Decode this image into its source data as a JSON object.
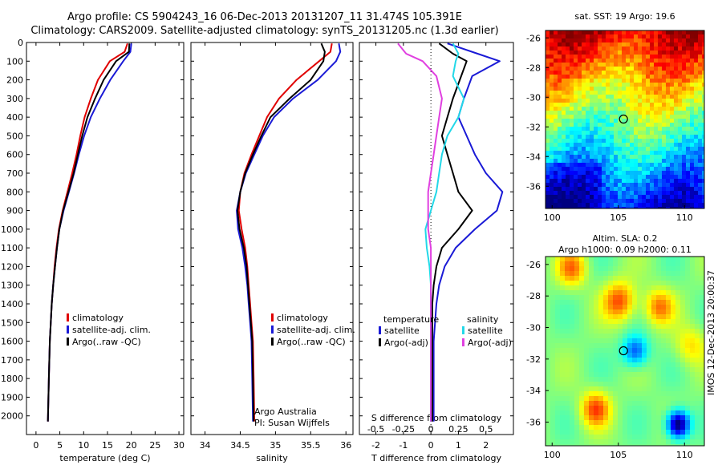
{
  "header": {
    "line1": "Argo profile: CS 5904243_16 06-Dec-2013 20131207_11 31.474S 105.391E",
    "line2": "Climatology: CARS2009. Satellite-adjusted climatology: synTS_20131205.nc (1.3d earlier)"
  },
  "colors": {
    "climatology": "#e00000",
    "satellite": "#1a1ad6",
    "argo": "#000000",
    "sat_salinity": "#22d8e8",
    "argo_salinity": "#e040e0"
  },
  "chart_data": [
    {
      "type": "line",
      "id": "temperature",
      "xlabel": "temperature (deg C)",
      "ylim": [
        2100,
        0
      ],
      "xlim": [
        -2,
        31
      ],
      "xticks": [
        0,
        5,
        10,
        15,
        20,
        25,
        30
      ],
      "yticks": [
        0,
        100,
        200,
        300,
        400,
        500,
        600,
        700,
        800,
        900,
        1000,
        1100,
        1200,
        1300,
        1400,
        1500,
        1600,
        1700,
        1800,
        1900,
        2000
      ],
      "legend": [
        "climatology",
        "satellite-adj. clim.",
        "Argo(..raw -QC)"
      ],
      "series": [
        {
          "name": "climatology",
          "color": "#e00000",
          "x": [
            19.2,
            18.6,
            15.5,
            13.0,
            11.5,
            10.2,
            9.3,
            8.5,
            7.6,
            6.6,
            5.6,
            4.8,
            4.3,
            3.9,
            3.6,
            3.3,
            3.1,
            2.9,
            2.7,
            2.5
          ],
          "y": [
            5,
            50,
            100,
            200,
            300,
            400,
            500,
            600,
            700,
            800,
            900,
            1000,
            1100,
            1200,
            1300,
            1400,
            1500,
            1600,
            1800,
            2030
          ]
        },
        {
          "name": "satellite-adj. clim.",
          "color": "#1a1ad6",
          "x": [
            20.0,
            19.8,
            18.3,
            15.6,
            13.4,
            11.5,
            10.1,
            9.0,
            8.0,
            6.9,
            5.8,
            4.9,
            4.4,
            4.0,
            3.6,
            3.3,
            3.1,
            2.9,
            2.7,
            2.5
          ],
          "y": [
            5,
            50,
            100,
            200,
            300,
            400,
            500,
            600,
            700,
            800,
            900,
            1000,
            1100,
            1200,
            1300,
            1400,
            1500,
            1600,
            1800,
            2030
          ]
        },
        {
          "name": "Argo(..raw -QC)",
          "color": "#000000",
          "x": [
            19.6,
            19.5,
            16.8,
            14.2,
            12.4,
            10.8,
            9.7,
            8.8,
            7.9,
            6.8,
            5.7,
            4.9,
            4.4,
            4.0,
            3.6,
            3.3,
            3.1,
            2.9,
            2.7,
            2.5
          ],
          "y": [
            5,
            50,
            100,
            200,
            300,
            400,
            500,
            600,
            700,
            800,
            900,
            1000,
            1100,
            1200,
            1300,
            1400,
            1500,
            1600,
            1800,
            2030
          ]
        }
      ]
    },
    {
      "type": "line",
      "id": "salinity",
      "xlabel": "salinity",
      "ylim": [
        2100,
        0
      ],
      "xlim": [
        33.8,
        36.1
      ],
      "xticks": [
        34,
        34.5,
        35,
        35.5,
        36
      ],
      "xticklabels": [
        "34",
        "34.5",
        "35",
        "35.5",
        "36"
      ],
      "legend": [
        "climatology",
        "satellite-adj. clim.",
        "Argo(..raw -QC)"
      ],
      "annotation": [
        "Argo Australia",
        "PI: Susan Wijffels"
      ],
      "series": [
        {
          "name": "climatology",
          "color": "#e00000",
          "x": [
            35.8,
            35.78,
            35.62,
            35.3,
            35.05,
            34.88,
            34.77,
            34.66,
            34.56,
            34.5,
            34.48,
            34.52,
            34.57,
            34.6,
            34.62,
            34.64,
            34.66,
            34.68,
            34.69,
            34.7
          ],
          "y": [
            5,
            50,
            100,
            200,
            300,
            400,
            500,
            600,
            700,
            800,
            900,
            1000,
            1100,
            1200,
            1300,
            1400,
            1500,
            1600,
            1800,
            2030
          ]
        },
        {
          "name": "satellite-adj. clim.",
          "color": "#1a1ad6",
          "x": [
            35.9,
            35.92,
            35.86,
            35.6,
            35.25,
            34.98,
            34.82,
            34.7,
            34.58,
            34.5,
            34.45,
            34.47,
            34.53,
            34.57,
            34.6,
            34.62,
            34.64,
            34.66,
            34.67,
            34.68
          ],
          "y": [
            5,
            50,
            100,
            200,
            300,
            400,
            500,
            600,
            700,
            800,
            900,
            1000,
            1100,
            1200,
            1300,
            1400,
            1500,
            1600,
            1800,
            2030
          ]
        },
        {
          "name": "Argo(..raw -QC)",
          "color": "#000000",
          "x": [
            35.65,
            35.7,
            35.68,
            35.5,
            35.2,
            34.93,
            34.8,
            34.68,
            34.57,
            34.5,
            34.46,
            34.49,
            34.55,
            34.59,
            34.61,
            34.63,
            34.65,
            34.67,
            34.68,
            34.69
          ],
          "y": [
            5,
            50,
            100,
            200,
            300,
            400,
            500,
            600,
            700,
            800,
            900,
            1000,
            1100,
            1200,
            1300,
            1400,
            1500,
            1600,
            1800,
            2030
          ]
        }
      ]
    },
    {
      "type": "line",
      "id": "difference",
      "xlabel": "T difference from climatology",
      "xlabel_top": "S difference from climatology",
      "ylim": [
        2100,
        0
      ],
      "xlim": [
        -2.6,
        3.0
      ],
      "xticks": [
        -2,
        -1,
        0,
        1,
        2
      ],
      "xticklabels": [
        "-2",
        "-1",
        "0",
        "1",
        "2"
      ],
      "sticks": [
        -0.5,
        -0.25,
        0,
        0.25,
        0.5
      ],
      "sticklabels": [
        "-0.5",
        "-0.25",
        "0",
        "0.25",
        "0.5"
      ],
      "legend_headers": [
        "temperature",
        "salinity"
      ],
      "legend": [
        "satellite",
        "Argo(-adj)",
        "satellite",
        "Argo(-adj)"
      ],
      "series": [
        {
          "name": "satellite",
          "quantity": "temperature",
          "color": "#1a1ad6",
          "x": [
            0.6,
            1.7,
            2.5,
            1.5,
            1.2,
            1.0,
            1.3,
            1.6,
            2.0,
            2.6,
            2.4,
            1.6,
            0.9,
            0.5,
            0.3,
            0.2,
            0.15,
            0.1,
            0.1,
            0.1
          ],
          "y": [
            5,
            60,
            100,
            180,
            300,
            400,
            500,
            600,
            700,
            800,
            900,
            1000,
            1100,
            1200,
            1300,
            1400,
            1500,
            1600,
            1800,
            2030
          ]
        },
        {
          "name": "Argo(-adj)",
          "quantity": "temperature",
          "color": "#000000",
          "x": [
            0.3,
            0.8,
            1.3,
            1.1,
            0.8,
            0.6,
            0.4,
            0.6,
            0.8,
            1.0,
            1.5,
            1.0,
            0.4,
            0.2,
            0.1,
            0.05,
            0.05,
            0.05,
            0.05,
            0.05
          ],
          "y": [
            5,
            60,
            100,
            180,
            300,
            400,
            500,
            600,
            700,
            800,
            900,
            1000,
            1100,
            1200,
            1300,
            1400,
            1500,
            1600,
            1800,
            2030
          ]
        },
        {
          "name": "satellite",
          "quantity": "salinity",
          "color": "#22d8e8",
          "x": [
            0.8,
            1.0,
            0.9,
            0.8,
            1.2,
            1.0,
            0.6,
            0.4,
            0.3,
            0.2,
            0.0,
            -0.2,
            -0.15,
            -0.05,
            0.0,
            0.0,
            0.0,
            0.0,
            0.0,
            0.0
          ],
          "y": [
            5,
            60,
            100,
            180,
            300,
            400,
            500,
            600,
            700,
            800,
            900,
            1000,
            1100,
            1200,
            1300,
            1400,
            1500,
            1600,
            1800,
            2030
          ]
        },
        {
          "name": "Argo(-adj)",
          "quantity": "salinity",
          "color": "#e040e0",
          "x": [
            -1.2,
            -0.9,
            -0.3,
            0.2,
            0.4,
            0.3,
            0.2,
            0.1,
            0.0,
            -0.1,
            -0.1,
            -0.1,
            0.0,
            0.0,
            0.0,
            0.0,
            0.0,
            0.0,
            0.0,
            0.0
          ],
          "y": [
            5,
            60,
            100,
            180,
            300,
            400,
            500,
            600,
            700,
            800,
            900,
            1000,
            1100,
            1200,
            1300,
            1400,
            1500,
            1600,
            1800,
            2030
          ]
        }
      ]
    },
    {
      "type": "heatmap",
      "id": "sst_map",
      "title": "sat. SST: 19 Argo: 19.6",
      "xlim": [
        99.5,
        111.5
      ],
      "ylim": [
        -37.5,
        -25.5
      ],
      "xticks": [
        100,
        105,
        110
      ],
      "yticks": [
        -26,
        -28,
        -30,
        -32,
        -34,
        -36
      ],
      "marker": {
        "lon": 105.391,
        "lat": -31.474
      }
    },
    {
      "type": "heatmap",
      "id": "sla_map",
      "title_line1": "Altim. SLA: 0.2",
      "title_line2": "Argo h1000: 0.09 h2000: 0.11",
      "xlim": [
        99.5,
        111.5
      ],
      "ylim": [
        -37.5,
        -25.5
      ],
      "xticks": [
        100,
        105,
        110
      ],
      "yticks": [
        -26,
        -28,
        -30,
        -32,
        -34,
        -36
      ],
      "marker": {
        "lon": 105.391,
        "lat": -31.474
      },
      "side_text": "IMOS 12-Dec-2013 20:00:37"
    }
  ]
}
